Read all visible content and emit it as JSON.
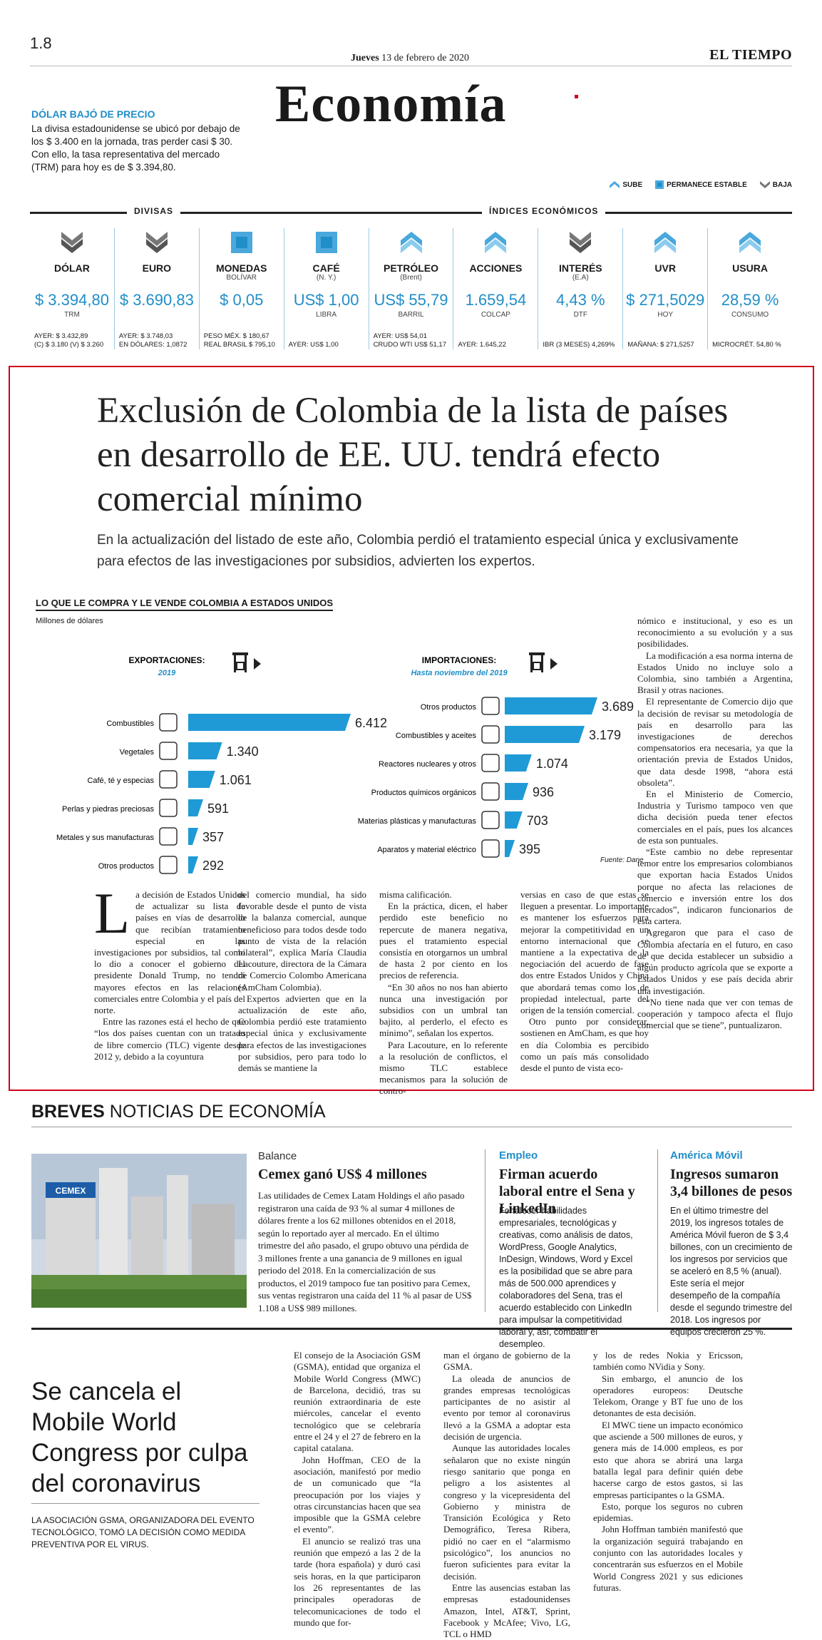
{
  "header": {
    "page_number": "1.8",
    "date_day": "Jueves",
    "date_rest": "13 de febrero de 2020",
    "newspaper": "EL TIEMPO",
    "section": "Economía"
  },
  "dolar_box": {
    "heading": "DÓLAR BAJÓ DE PRECIO",
    "text": "La divisa estadounidense se ubicó por debajo de los $ 3.400 en la jornada, tras perder casi $ 30. Con ello, la tasa representativa del mercado (TRM) para hoy es de $ 3.394,80."
  },
  "legend": {
    "up": "SUBE",
    "stable": "PERMANECE ESTABLE",
    "down": "BAJA"
  },
  "indicator_labels": {
    "divisas": "DIVISAS",
    "indices": "ÍNDICES ECONÓMICOS"
  },
  "indicators": [
    {
      "name": "DÓLAR",
      "sub": "",
      "value": "$ 3.394,80",
      "unit": "TRM",
      "trend": "down",
      "foot1": "AYER: $ 3.432,89",
      "foot2": "(C) $ 3.180 (V) $ 3.260"
    },
    {
      "name": "EURO",
      "sub": "",
      "value": "$ 3.690,83",
      "unit": "",
      "trend": "down",
      "foot1": "AYER: $ 3.748,03",
      "foot2": "EN DÓLARES: 1,0872"
    },
    {
      "name": "MONEDAS",
      "sub": "BOLÍVAR",
      "value": "$ 0,05",
      "unit": "",
      "trend": "stable",
      "foot1": "PESO MÉX. $ 180,67",
      "foot2": "REAL BRASIL $ 795,10"
    },
    {
      "name": "CAFÉ",
      "sub": "(N. Y.)",
      "value": "US$ 1,00",
      "unit": "LIBRA",
      "trend": "stable",
      "foot1": "AYER: US$ 1,00",
      "foot2": ""
    },
    {
      "name": "PETRÓLEO",
      "sub": "(Brent)",
      "value": "US$ 55,79",
      "unit": "BARRIL",
      "trend": "up",
      "foot1": "AYER: US$ 54,01",
      "foot2": "CRUDO WTI US$ 51,17"
    },
    {
      "name": "ACCIONES",
      "sub": "",
      "value": "1.659,54",
      "unit": "COLCAP",
      "trend": "up",
      "foot1": "AYER: 1.645,22",
      "foot2": ""
    },
    {
      "name": "INTERÉS",
      "sub": "(E.A)",
      "value": "4,43 %",
      "unit": "DTF",
      "trend": "down",
      "foot1": "IBR (3 MESES) 4,269%",
      "foot2": ""
    },
    {
      "name": "UVR",
      "sub": "",
      "value": "$ 271,5029",
      "unit": "HOY",
      "trend": "up",
      "foot1": "MAÑANA: $ 271,5257",
      "foot2": ""
    },
    {
      "name": "USURA",
      "sub": "",
      "value": "28,59 %",
      "unit": "CONSUMO",
      "trend": "up",
      "foot1": "MICROCRÉT. 54,80 %",
      "foot2": ""
    }
  ],
  "article": {
    "headline": "Exclusión de Colombia de la lista de países en desarrollo de EE. UU. tendrá efecto comercial mínimo",
    "deck": "En la actualización del listado de este año, Colombia perdió el tratamiento especial única y exclusivamente para efectos de las investigaciones por subsidios, advierten los expertos.",
    "dropcap": "L",
    "col1": "a decisión de Estados Unidos de actualizar su lista de países en vías de desarrollo que recibían tratamiento especial en las investigaciones por subsidios, tal como lo dio a conocer el gobierno del presidente Donald Trump, no tendrá mayores efectos en las relaciones comerciales entre Colombia y el país del norte.",
    "col1b": "Entre las razones está el hecho de que “los dos países cuentan con un tratado de libre comercio (TLC) vigente desde 2012 y, debido a la coyuntura",
    "col2": "del comercio mundial, ha sido favorable desde el punto de vista de la balanza comercial, aunque beneficioso para todos desde todo punto de vista de la relación bilateral”, explica María Claudia Lacouture, directora de la Cámara de Comercio Colombo Americana (AmCham Colombia).",
    "col2b": "Expertos advierten que en la actualización de este año, Colombia perdió este tratamiento especial única y exclusivamente para efectos de las investigaciones por subsidios, pero para todo lo demás se mantiene la",
    "col3": "misma calificación.",
    "col3b": "En la práctica, dicen, el haber perdido este beneficio no repercute de manera negativa, pues el tratamiento especial consistía en otorgarnos un umbral de hasta 2 por ciento en los precios de referencia.",
    "col3c": "“En 30 años no nos han abierto nunca una investigación por subsidios con un umbral tan bajito, al perderlo, el efecto es mínimo”, señalan los expertos.",
    "col3d": "Para Lacouture, en lo referente a la resolución de conflictos, el mismo TLC establece mecanismos para la solución de contro-",
    "col4": "versias en caso de que estas se lleguen a presentar. Lo importante es mantener los esfuerzos para mejorar la competitividad en un entorno internacional que se mantiene a la expectativa de la negociación del acuerdo de fase dos entre Estados Unidos y China que abordará temas como los de propiedad intelectual, parte del origen de la tensión comercial.",
    "col4b": "Otro punto por considerar, sostienen en AmCham, es que hoy en día Colombia es percibido como un país más consolidado desde el punto de vista eco-",
    "col5": "nómico e institucional, y eso es un reconocimiento a su evolución y a sus posibilidades.",
    "col5b": "La modificación a esa norma interna de Estados Unido no incluye solo a Colombia, sino también a Argentina, Brasil y otras naciones.",
    "col5c": "El representante de Comercio dijo que la decisión de revisar su metodología de país en desarrollo para las investigaciones de derechos compensatorios era necesaria, ya que la orientación previa de Estados Unidos, que data desde 1998, “ahora está obsoleta”.",
    "col5d": "En el Ministerio de Comercio, Industria y Turismo tampoco ven que dicha decisión pueda tener efectos comerciales en el país, pues los alcances de esta son puntuales.",
    "col5e": "“Este cambio no debe representar temor entre los empresarios colombianos que exportan hacia Estados Unidos porque no afecta las relaciones de comercio e inversión entre los dos mercados”, indicaron funcionarios de esta cartera.",
    "col5f": "Agregaron que para el caso de Colombia afectaría en el futuro, en caso de que decida establecer un subsidio a algún producto agrícola que se exporte a Estados Unidos y ese país decida abrir una investigación.",
    "col5g": "“No tiene nada que ver con temas de cooperación y tampoco afecta el flujo comercial que se tiene”, puntualizaron."
  },
  "chart_data": {
    "type": "bar",
    "title": "LO QUE LE COMPRA Y LE VENDE COLOMBIA A ESTADOS UNIDOS",
    "unit": "Millones de dólares",
    "source": "Fuente: Dane",
    "panels": [
      {
        "name": "EXPORTACIONES:",
        "period": "2019",
        "categories": [
          "Combustibles",
          "Vegetales",
          "Café, té y especias",
          "Perlas y piedras preciosas",
          "Metales y sus manufacturas",
          "Otros productos"
        ],
        "values": [
          6412,
          1340,
          1061,
          591,
          357,
          292
        ],
        "labels": [
          "6.412",
          "1.340",
          "1.061",
          "591",
          "357",
          "292"
        ],
        "color": "#1f9ad6"
      },
      {
        "name": "IMPORTACIONES:",
        "period": "Hasta noviembre del 2019",
        "categories": [
          "Otros productos",
          "Combustibles y aceites",
          "Reactores nucleares y otros",
          "Productos químicos orgánicos",
          "Materias plásticas y manufacturas",
          "Aparatos y material eléctrico"
        ],
        "values": [
          3689,
          3179,
          1074,
          936,
          703,
          395
        ],
        "labels": [
          "3.689",
          "3.179",
          "1.074",
          "936",
          "703",
          "395"
        ],
        "color": "#1f9ad6"
      }
    ]
  },
  "breves": {
    "heading_bold": "BREVES",
    "heading_rest": "NOTICIAS DE ECONOMÍA",
    "items": [
      {
        "category": "Balance",
        "title": "Cemex ganó US$ 4 millones",
        "text": "Las utilidades de Cemex Latam Holdings el año pasado registraron una caída de 93 % al sumar 4 millones de dólares frente a los 62 millones obtenidos en el 2018, según lo reportado ayer al mercado. En el último trimestre del año pasado, el grupo obtuvo una pérdida de 3 millones frente a una ganancia de 9 millones en igual periodo del 2018. En la comercialización de sus productos, el 2019 tampoco fue tan positivo para Cemex, sus ventas registraron una caída del 11 % al pasar de US$ 1.108 a US$ 989 millones."
      },
      {
        "category": "Empleo",
        "title": "Firman acuerdo laboral entre el Sena y LinkedIn",
        "text": "Fortalecer habilidades empresariales, tecnológicas y creativas, como análisis de datos, WordPress, Google Analytics, InDesign, Windows, Word y Excel es la posibilidad que se abre para más de 500.000 aprendices y colaboradores del Sena, tras el acuerdo establecido con LinkedIn para impulsar la competitividad laboral y, así, combatir el desempleo."
      },
      {
        "category": "América Móvil",
        "title": "Ingresos sumaron 3,4 billones de pesos",
        "text": "En el último trimestre del 2019, los ingresos totales de América Móvil fueron de $ 3,4 billones, con un crecimiento de los ingresos por servicios que se aceleró en 8,5 % (anual). Este sería el mejor desempeño de la compañía desde el segundo trimestre del 2018. Los ingresos por equipos crecieron 25 %."
      }
    ],
    "photo_sign": "CEMEX"
  },
  "mwc": {
    "headline": "Se cancela el Mobile World Congress por culpa del coronavirus",
    "caption": "La Asociación GSMA, organizadora del evento tecnológico, tomó la decisión como medida preventiva por el virus.",
    "col1": "El consejo de la Asociación GSM (GSMA), entidad que organiza el Mobile World Congress (MWC) de Barcelona, decidió, tras su reunión extraordinaria de este miércoles, cancelar el evento tecnológico que se celebraría entre el 24 y el 27 de febrero en la capital catalana.",
    "col1b": "John Hoffman, CEO de la asociación, manifestó por medio de un comunicado que “la preocupación por los viajes y otras circunstancias hacen que sea imposible que la GSMA celebre el evento”.",
    "col1c": "El anuncio se realizó tras una reunión que empezó a las 2 de la tarde (hora española) y duró casi seis horas, en la que participaron los 26 representantes de las principales operadoras de telecomunicaciones de todo el mundo que for-",
    "col2": "man el órgano de gobierno de la GSMA.",
    "col2b": "La oleada de anuncios de grandes empresas tecnológicas participantes de no asistir al evento por temor al coronavirus llevó a la GSMA a adoptar esta decisión de urgencia.",
    "col2c": "Aunque las autoridades locales señalaron que no existe ningún riesgo sanitario que ponga en peligro a los asistentes al congreso y la vicepresidenta del Gobierno y ministra de Transición Ecológica y Reto Demográfico, Teresa Ribera, pidió no caer en el “alarmismo psicológico”, los anuncios no fueron suficientes para evitar la decisión.",
    "col2d": "Entre las ausencias estaban las empresas estadounidenses Amazon, Intel, AT&T, Sprint, Facebook y McAfee; Vivo, LG, TCL o HMD",
    "col3": "y los de redes Nokia y Ericsson, también como NVidia y Sony.",
    "col3b": "Sin embargo, el anuncio de los operadores europeos: Deutsche Telekom, Orange y BT fue uno de los detonantes de esta decisión.",
    "col3c": "El MWC tiene un impacto económico que asciende a 500 millones de euros, y genera más de 14.000 empleos, es por esto que ahora se abrirá una larga batalla legal para definir quién debe hacerse cargo de estos gastos, si las empresas participantes o la GSMA.",
    "col3d": "Esto, porque los seguros no cubren epidemias.",
    "col3e": "John Hoffman también manifestó que la organización seguirá trabajando en conjunto con las autoridades locales y concentrarán sus esfuerzos en el Mobile World Congress 2021 y sus ediciones futuras."
  }
}
